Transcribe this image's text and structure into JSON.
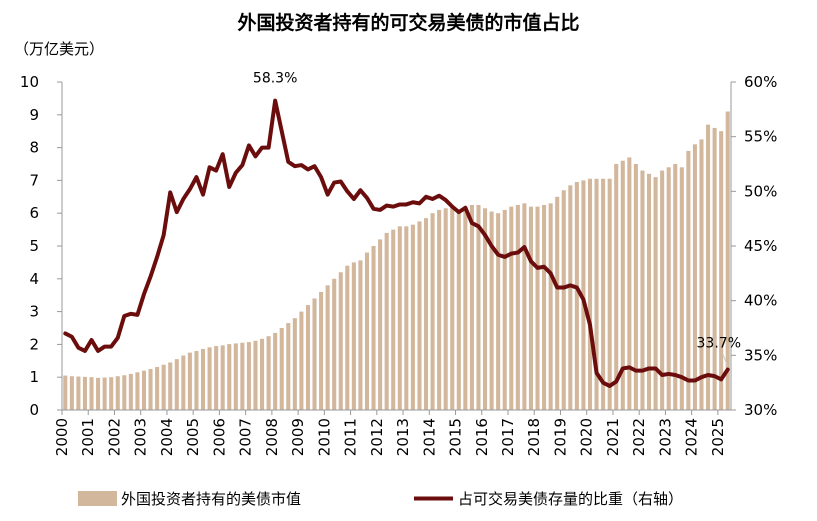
{
  "chart_data": {
    "type": "bar+line",
    "title": "外国投资者持有的可交易美债的市值占比",
    "y_left_label": "（万亿美元）",
    "y_left_range": [
      0,
      10
    ],
    "y_left_ticks": [
      0,
      1,
      2,
      3,
      4,
      5,
      6,
      7,
      8,
      9,
      10
    ],
    "y_right_range": [
      30,
      60
    ],
    "y_right_ticks": [
      "30%",
      "35%",
      "40%",
      "45%",
      "50%",
      "55%",
      "60%"
    ],
    "x_tick_labels": [
      "2000",
      "2001",
      "2002",
      "2003",
      "2004",
      "2005",
      "2006",
      "2007",
      "2008",
      "2009",
      "2010",
      "2011",
      "2012",
      "2013",
      "2014",
      "2015",
      "2016",
      "2017",
      "2018",
      "2019",
      "2020",
      "2021",
      "2022",
      "2023",
      "2024",
      "2025"
    ],
    "grid": false,
    "legend_position": "bottom",
    "bar_series": {
      "name": "外国投资者持有的美债市值",
      "color": "#d2b79c",
      "axis": "left",
      "values": [
        1.05,
        1.03,
        1.02,
        1.01,
        1.0,
        0.98,
        0.99,
        1.0,
        1.03,
        1.06,
        1.1,
        1.15,
        1.2,
        1.25,
        1.31,
        1.38,
        1.45,
        1.55,
        1.66,
        1.75,
        1.8,
        1.86,
        1.91,
        1.95,
        1.97,
        2.01,
        2.03,
        2.05,
        2.07,
        2.11,
        2.17,
        2.25,
        2.35,
        2.5,
        2.65,
        2.8,
        3.0,
        3.2,
        3.4,
        3.6,
        3.8,
        4.0,
        4.2,
        4.4,
        4.5,
        4.56,
        4.8,
        5.0,
        5.2,
        5.4,
        5.5,
        5.6,
        5.6,
        5.65,
        5.75,
        5.85,
        6.0,
        6.1,
        6.15,
        6.2,
        6.1,
        6.2,
        6.25,
        6.25,
        6.15,
        6.05,
        6.0,
        6.1,
        6.2,
        6.25,
        6.3,
        6.2,
        6.2,
        6.25,
        6.3,
        6.5,
        6.7,
        6.85,
        6.95,
        7.0,
        7.05,
        7.05,
        7.05,
        7.05,
        7.5,
        7.6,
        7.7,
        7.5,
        7.3,
        7.2,
        7.1,
        7.3,
        7.4,
        7.5,
        7.4,
        7.9,
        8.1,
        8.25,
        8.7,
        8.6,
        8.5,
        9.1
      ]
    },
    "line_series": {
      "name": "占可交易美债存量的比重（右轴）",
      "color": "#6b0d0d",
      "axis": "right",
      "values": [
        37.0,
        36.7,
        35.7,
        35.4,
        36.4,
        35.4,
        35.8,
        35.8,
        36.6,
        38.6,
        38.8,
        38.7,
        40.6,
        42.2,
        44.0,
        46.0,
        49.9,
        48.1,
        49.3,
        50.2,
        51.3,
        49.7,
        52.2,
        51.9,
        53.4,
        50.4,
        51.7,
        52.4,
        54.2,
        53.2,
        54.0,
        54.0,
        58.3,
        55.5,
        52.7,
        52.3,
        52.4,
        52.0,
        52.3,
        51.3,
        49.7,
        50.8,
        50.9,
        50.0,
        49.3,
        50.1,
        49.4,
        48.4,
        48.3,
        48.7,
        48.6,
        48.8,
        48.8,
        49.0,
        48.9,
        49.5,
        49.3,
        49.6,
        49.2,
        48.6,
        48.1,
        48.5,
        47.1,
        46.8,
        46.0,
        45.0,
        44.2,
        44.0,
        44.3,
        44.4,
        44.9,
        43.6,
        43.0,
        43.1,
        42.5,
        41.2,
        41.2,
        41.4,
        41.2,
        40.1,
        37.8,
        33.4,
        32.5,
        32.2,
        32.6,
        33.8,
        33.9,
        33.6,
        33.6,
        33.8,
        33.8,
        33.2,
        33.3,
        33.2,
        33.0,
        32.7,
        32.7,
        33.0,
        33.2,
        33.1,
        32.8,
        33.7
      ]
    },
    "annotations": [
      {
        "text": "58.3%"
      },
      {
        "text": "33.7%"
      }
    ]
  }
}
